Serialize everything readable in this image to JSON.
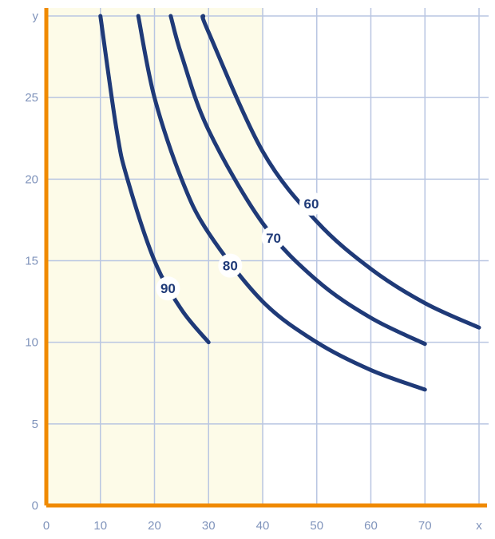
{
  "chart_data": {
    "type": "line",
    "title": "",
    "xlabel": "",
    "ylabel": "",
    "xlim": [
      0,
      80
    ],
    "ylim": [
      0,
      30
    ],
    "x_ticks": [
      "0",
      "10",
      "20",
      "30",
      "40",
      "50",
      "60",
      "70",
      "x"
    ],
    "y_ticks": [
      "0",
      "5",
      "10",
      "15",
      "20",
      "25",
      "y"
    ],
    "grid": true,
    "colors": {
      "axes": "#f08a00",
      "curves": "#1f3a78",
      "grid": "#b9c6e2",
      "background_left": "#fdfbe8"
    },
    "series": [
      {
        "label": "90",
        "x": [
          10,
          13,
          15,
          20,
          25,
          30
        ],
        "y": [
          30,
          23,
          20,
          15,
          12,
          10
        ],
        "label_at": [
          22.5,
          13.3
        ]
      },
      {
        "label": "80",
        "x": [
          17,
          20,
          25,
          30,
          40,
          50,
          60,
          70
        ],
        "y": [
          30,
          25,
          20,
          16.7,
          12.5,
          10,
          8.3,
          7.1
        ],
        "label_at": [
          34,
          14.7
        ]
      },
      {
        "label": "70",
        "x": [
          23,
          25,
          30,
          40,
          50,
          60,
          70
        ],
        "y": [
          30,
          27.6,
          23,
          17.3,
          13.8,
          11.5,
          9.9
        ],
        "label_at": [
          42,
          16.4
        ]
      },
      {
        "label": "60",
        "x": [
          29,
          30,
          40,
          50,
          60,
          70,
          80
        ],
        "y": [
          30,
          29,
          21.7,
          17.4,
          14.5,
          12.4,
          10.9
        ],
        "label_at": [
          49,
          18.5
        ]
      }
    ]
  }
}
